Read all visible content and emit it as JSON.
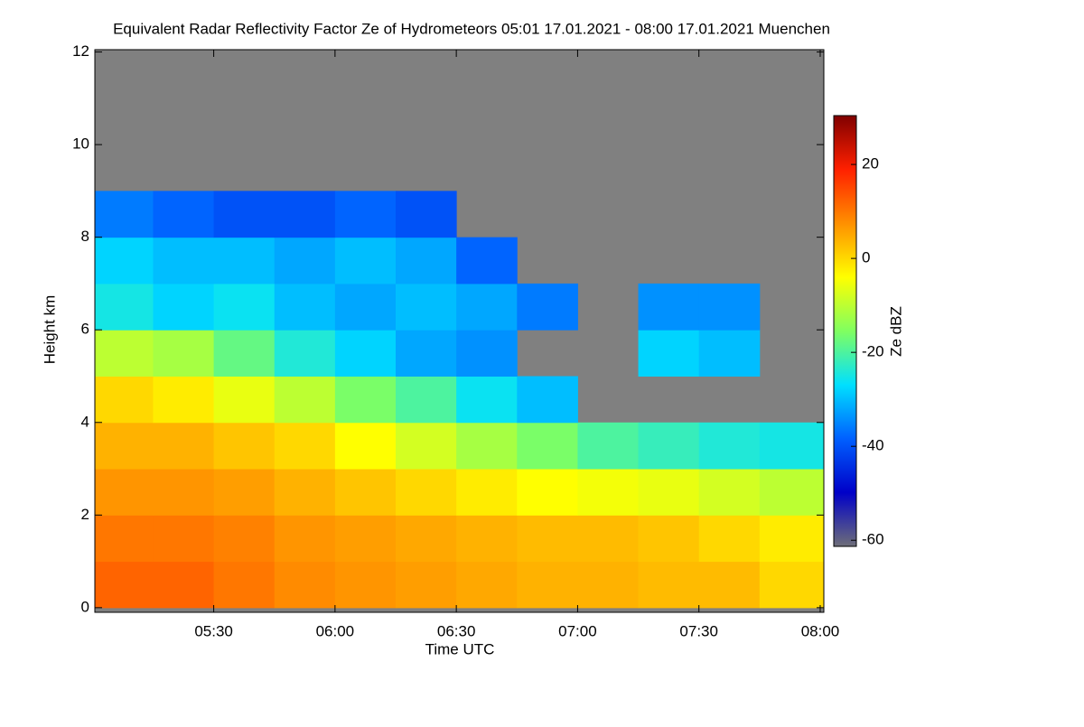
{
  "chart_data": {
    "type": "heatmap",
    "title": "Equivalent Radar Reflectivity Factor Ze of Hydrometeors   05:01 17.01.2021 - 08:00 17.01.2021 Muenchen",
    "x_label": "Time UTC",
    "y_label": "Height km",
    "colorbar_label": "Ze dBZ",
    "xlim": [
      5.01,
      8.015
    ],
    "xticks": [
      {
        "value": 5.5,
        "label": "05:30"
      },
      {
        "value": 6.0,
        "label": "06:00"
      },
      {
        "value": 6.5,
        "label": "06:30"
      },
      {
        "value": 7.0,
        "label": "07:00"
      },
      {
        "value": 7.5,
        "label": "07:30"
      },
      {
        "value": 8.0,
        "label": "08:00"
      }
    ],
    "ylim": [
      -0.1,
      12.05
    ],
    "yticks": [
      0,
      2,
      4,
      6,
      8,
      10,
      12
    ],
    "zlim": [
      -61.3,
      30.4
    ],
    "zticks": [
      -60,
      -40,
      -20,
      0,
      20
    ],
    "xbins": [
      5.01,
      5.25,
      5.5,
      5.75,
      6.0,
      6.25,
      6.5,
      6.75,
      7.0,
      7.25,
      7.5,
      7.75,
      8.015
    ],
    "ybins": [
      0,
      1,
      2,
      3,
      4,
      5,
      6,
      7,
      8,
      9,
      10,
      11,
      12
    ],
    "values": [
      [
        12,
        12,
        10,
        8,
        7,
        6,
        5,
        4,
        4,
        3,
        3,
        0
      ],
      [
        10,
        10,
        9,
        7,
        6,
        5,
        4,
        3,
        3,
        2,
        0,
        -2
      ],
      [
        7,
        7,
        6,
        4,
        2,
        0,
        -2,
        -4,
        -5,
        -6,
        -8,
        -10
      ],
      [
        4,
        4,
        2,
        0,
        -4,
        -8,
        -12,
        -16,
        -20,
        -22,
        -24,
        -25
      ],
      [
        0,
        -2,
        -6,
        -10,
        -16,
        -20,
        -26,
        -30,
        null,
        null,
        null,
        null
      ],
      [
        -10,
        -12,
        -18,
        -24,
        -28,
        -32,
        -34,
        null,
        null,
        -28,
        -30,
        null
      ],
      [
        -25,
        -28,
        -26,
        -30,
        -32,
        -30,
        -32,
        -36,
        null,
        -34,
        -34,
        null
      ],
      [
        -28,
        -30,
        -30,
        -32,
        -30,
        -32,
        -38,
        null,
        null,
        null,
        null,
        null
      ],
      [
        -36,
        -38,
        -40,
        -40,
        -38,
        -40,
        null,
        null,
        null,
        null,
        null,
        null
      ],
      [
        null,
        null,
        null,
        null,
        null,
        null,
        null,
        null,
        null,
        null,
        null,
        null
      ],
      [
        null,
        null,
        null,
        null,
        null,
        null,
        null,
        null,
        null,
        null,
        null,
        null
      ],
      [
        null,
        null,
        null,
        null,
        null,
        null,
        null,
        null,
        null,
        null,
        null,
        null
      ]
    ],
    "background_color": "#808080",
    "colormap": [
      "#6e6e78",
      "#0000c8",
      "#0060ff",
      "#00e0ff",
      "#80ff60",
      "#ffff00",
      "#ff9000",
      "#ff2000",
      "#800000"
    ]
  }
}
